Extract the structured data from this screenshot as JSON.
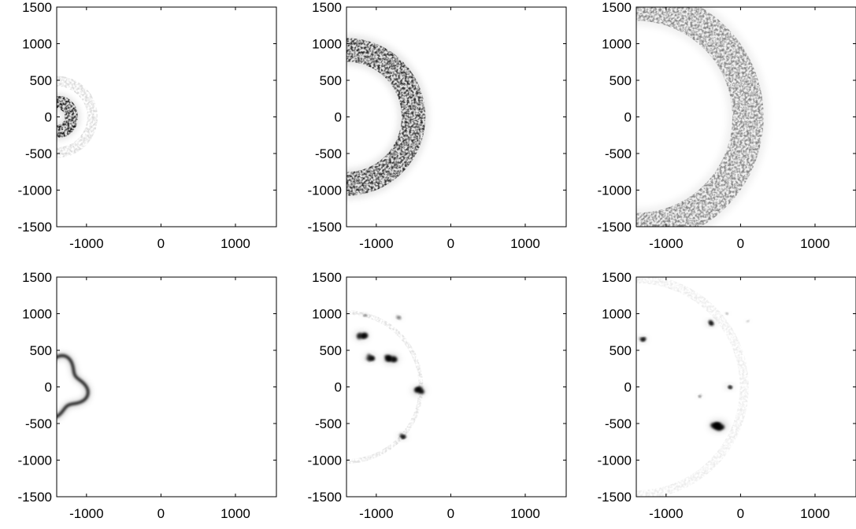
{
  "chart_data": [
    {
      "type": "heatmap",
      "panel": "top-left",
      "colormap": "white-to-black",
      "xlim": [
        -1400,
        1550
      ],
      "ylim": [
        -1500,
        1500
      ],
      "x_ticks": [
        -1000,
        0,
        1000
      ],
      "y_ticks": [
        1500,
        1000,
        500,
        0,
        -500,
        -1000,
        -1500
      ],
      "x_tick_labels": [
        "-1000",
        "0",
        "1000"
      ],
      "y_tick_labels": [
        "1500",
        "1000",
        "500",
        "0",
        "-500",
        "-1000",
        "-1500"
      ],
      "features": [
        {
          "kind": "speckled-ring",
          "center": [
            -1400,
            0
          ],
          "radius": 200,
          "width": 180,
          "intensity": 0.9
        },
        {
          "kind": "faint-halo",
          "center": [
            -1400,
            0
          ],
          "radius": 480,
          "width": 140,
          "intensity": 0.15
        }
      ]
    },
    {
      "type": "heatmap",
      "panel": "top-middle",
      "colormap": "white-to-black",
      "xlim": [
        -1400,
        1550
      ],
      "ylim": [
        -1500,
        1500
      ],
      "x_ticks": [
        -1000,
        0,
        1000
      ],
      "y_ticks": [
        1500,
        1000,
        500,
        0,
        -500,
        -1000,
        -1500
      ],
      "x_tick_labels": [
        "-1000",
        "0",
        "1000"
      ],
      "y_tick_labels": [
        "1500",
        "1000",
        "500",
        "0",
        "-500",
        "-1000",
        "-1500"
      ],
      "features": [
        {
          "kind": "speckled-ring",
          "center": [
            -1400,
            0
          ],
          "radius": 900,
          "width": 320,
          "intensity": 0.8
        }
      ]
    },
    {
      "type": "heatmap",
      "panel": "top-right",
      "colormap": "white-to-black",
      "xlim": [
        -1400,
        1550
      ],
      "ylim": [
        -1500,
        1500
      ],
      "x_ticks": [
        -1000,
        0,
        1000
      ],
      "y_ticks": [
        1500,
        1000,
        500,
        0,
        -500,
        -1000,
        -1500
      ],
      "x_tick_labels": [
        "-1000",
        "0",
        "1000"
      ],
      "y_tick_labels": [
        "1500",
        "1000",
        "500",
        "0",
        "-500",
        "-1000",
        "-1500"
      ],
      "features": [
        {
          "kind": "speckled-ring",
          "center": [
            -1400,
            0
          ],
          "radius": 1500,
          "width": 420,
          "intensity": 0.45
        }
      ]
    },
    {
      "type": "heatmap",
      "panel": "bottom-left",
      "colormap": "white-to-black",
      "xlim": [
        -1400,
        1550
      ],
      "ylim": [
        -1500,
        1500
      ],
      "x_ticks": [
        -1000,
        0,
        1000
      ],
      "y_ticks": [
        1500,
        1000,
        500,
        0,
        -500,
        -1000,
        -1500
      ],
      "x_tick_labels": [
        "-1000",
        "0",
        "1000"
      ],
      "y_tick_labels": [
        "1500",
        "1000",
        "500",
        "0",
        "-500",
        "-1000",
        "-1500"
      ],
      "features": [
        {
          "kind": "smooth-wavy-ring",
          "center": [
            -1400,
            0
          ],
          "radius": 360,
          "width": 60,
          "lobes": 4,
          "intensity": 1.0
        }
      ]
    },
    {
      "type": "heatmap",
      "panel": "bottom-middle",
      "colormap": "white-to-black",
      "xlim": [
        -1400,
        1550
      ],
      "ylim": [
        -1500,
        1500
      ],
      "x_ticks": [
        -1000,
        0,
        1000
      ],
      "y_ticks": [
        1500,
        1000,
        500,
        0,
        -500,
        -1000,
        -1500
      ],
      "x_tick_labels": [
        "-1000",
        "0",
        "1000"
      ],
      "y_tick_labels": [
        "1500",
        "1000",
        "500",
        "0",
        "-500",
        "-1000",
        "-1500"
      ],
      "features": [
        {
          "kind": "faint-arc",
          "center": [
            -1400,
            0
          ],
          "radius": 1000,
          "width": 60,
          "intensity": 0.12
        },
        {
          "kind": "clump",
          "x": -1200,
          "y": 700,
          "size": 70,
          "intensity": 0.95
        },
        {
          "kind": "clump",
          "x": -1080,
          "y": 400,
          "size": 60,
          "intensity": 0.9
        },
        {
          "kind": "clump",
          "x": -800,
          "y": 380,
          "size": 80,
          "intensity": 0.95
        },
        {
          "kind": "clump",
          "x": -430,
          "y": -50,
          "size": 70,
          "intensity": 1.0
        },
        {
          "kind": "clump",
          "x": -650,
          "y": -680,
          "size": 45,
          "intensity": 0.8
        },
        {
          "kind": "clump",
          "x": -700,
          "y": 950,
          "size": 35,
          "intensity": 0.5
        },
        {
          "kind": "clump",
          "x": -1150,
          "y": 980,
          "size": 30,
          "intensity": 0.4
        }
      ]
    },
    {
      "type": "heatmap",
      "panel": "bottom-right",
      "colormap": "white-to-black",
      "xlim": [
        -1400,
        1550
      ],
      "ylim": [
        -1500,
        1500
      ],
      "x_ticks": [
        -1000,
        0,
        1000
      ],
      "y_ticks": [
        1500,
        1000,
        500,
        0,
        -500,
        -1000,
        -1500
      ],
      "x_tick_labels": [
        "-1000",
        "0",
        "1000"
      ],
      "y_tick_labels": [
        "1500",
        "1000",
        "500",
        "0",
        "-500",
        "-1000",
        "-1500"
      ],
      "features": [
        {
          "kind": "faint-arc",
          "center": [
            -1400,
            0
          ],
          "radius": 1450,
          "width": 120,
          "intensity": 0.08
        },
        {
          "kind": "clump",
          "x": -1320,
          "y": 650,
          "size": 45,
          "intensity": 0.8
        },
        {
          "kind": "clump",
          "x": -400,
          "y": 870,
          "size": 45,
          "intensity": 0.95
        },
        {
          "kind": "clump",
          "x": -150,
          "y": 0,
          "size": 40,
          "intensity": 0.85
        },
        {
          "kind": "clump",
          "x": -300,
          "y": -530,
          "size": 90,
          "intensity": 1.0
        },
        {
          "kind": "clump",
          "x": -550,
          "y": -130,
          "size": 25,
          "intensity": 0.5
        },
        {
          "kind": "clump",
          "x": -180,
          "y": 1000,
          "size": 20,
          "intensity": 0.4
        },
        {
          "kind": "clump",
          "x": 100,
          "y": 900,
          "size": 20,
          "intensity": 0.3
        }
      ]
    }
  ]
}
